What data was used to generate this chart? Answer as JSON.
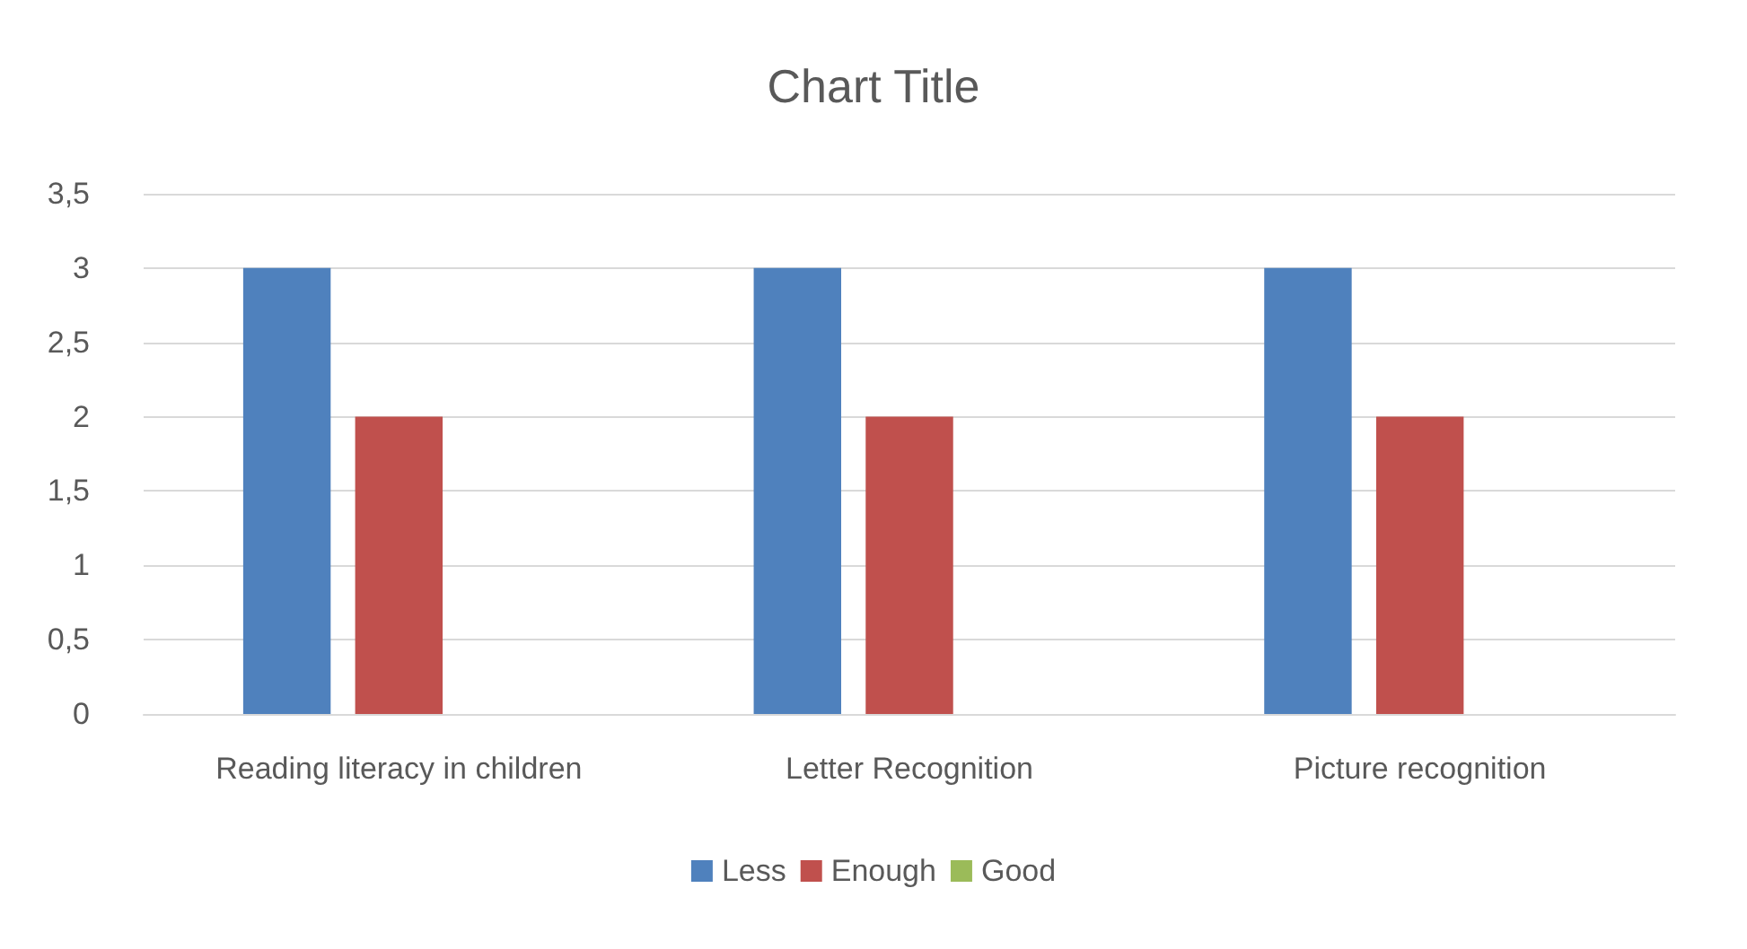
{
  "chart_data": {
    "type": "bar",
    "title": "Chart Title",
    "categories": [
      "Reading literacy in children",
      "Letter Recognition",
      "Picture recognition"
    ],
    "series": [
      {
        "name": "Less",
        "color": "#4f81bd",
        "values": [
          3,
          3,
          3
        ]
      },
      {
        "name": "Enough",
        "color": "#c0504d",
        "values": [
          2,
          2,
          2
        ]
      },
      {
        "name": "Good",
        "color": "#9bbb59",
        "values": [
          0,
          0,
          0
        ]
      }
    ],
    "ylim": [
      0,
      3.5
    ],
    "yticks": [
      0,
      {
        "value": 0.5,
        "label": "0,5"
      },
      1,
      {
        "value": 1.5,
        "label": "1,5"
      },
      2,
      {
        "value": 2.5,
        "label": "2,5"
      },
      3,
      {
        "value": 3.5,
        "label": "3,5"
      }
    ],
    "grid": "y",
    "legend": "bottom"
  }
}
